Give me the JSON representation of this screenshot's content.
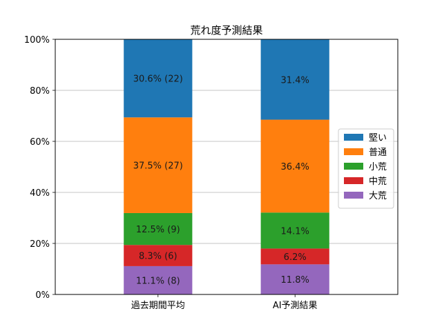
{
  "chart_data": {
    "type": "bar",
    "stacked": true,
    "title": "荒れ度予測結果",
    "xlabel": "",
    "ylabel": "",
    "categories": [
      "過去期間平均",
      "AI予測結果"
    ],
    "ylim": [
      0,
      100
    ],
    "yticks": [
      0,
      20,
      40,
      60,
      80,
      100
    ],
    "ytick_labels": [
      "0%",
      "20%",
      "40%",
      "60%",
      "80%",
      "100%"
    ],
    "grid": "y",
    "legend_position": "right",
    "series": [
      {
        "name": "大荒",
        "color": "#9467bd",
        "values": [
          11.1,
          11.8
        ],
        "labels": [
          "11.1% (8)",
          "11.8%"
        ]
      },
      {
        "name": "中荒",
        "color": "#d62728",
        "values": [
          8.3,
          6.2
        ],
        "labels": [
          "8.3% (6)",
          "6.2%"
        ]
      },
      {
        "name": "小荒",
        "color": "#2ca02c",
        "values": [
          12.5,
          14.1
        ],
        "labels": [
          "12.5% (9)",
          "14.1%"
        ]
      },
      {
        "name": "普通",
        "color": "#ff7f0e",
        "values": [
          37.5,
          36.4
        ],
        "labels": [
          "37.5% (27)",
          "36.4%"
        ]
      },
      {
        "name": "堅い",
        "color": "#1f77b4",
        "values": [
          30.6,
          31.4
        ],
        "labels": [
          "30.6% (22)",
          "31.4%"
        ]
      }
    ],
    "legend_order": [
      "堅い",
      "普通",
      "小荒",
      "中荒",
      "大荒"
    ]
  }
}
